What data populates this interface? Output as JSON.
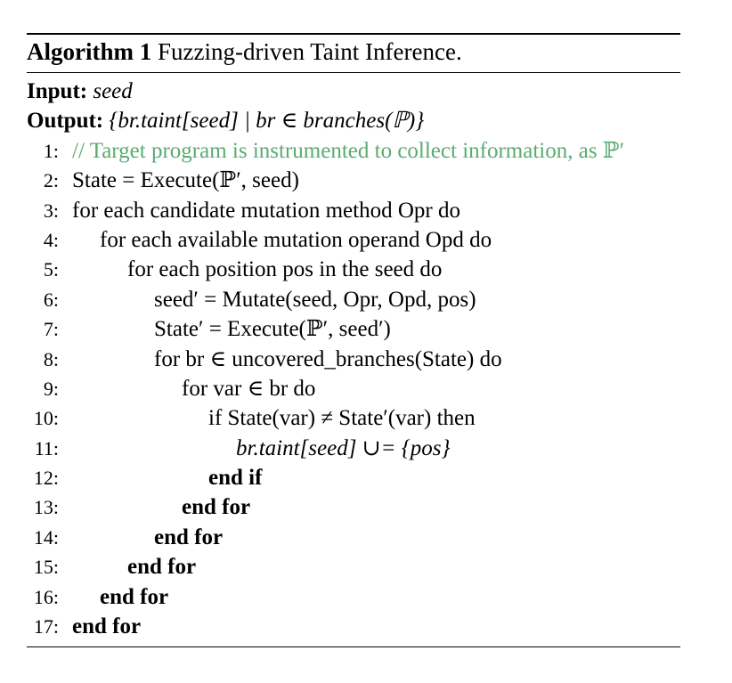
{
  "algorithm": {
    "caption_label": "Algorithm 1",
    "caption_title": "Fuzzing-driven Taint Inference.",
    "input_label": "Input:",
    "input_value": "seed",
    "output_label": "Output:",
    "output_value": "{br.taint[seed] | br ∈ branches(ℙ)}"
  },
  "lines": [
    {
      "num": "1:",
      "text": "// Target program is instrumented to collect information, as ℙ′"
    },
    {
      "num": "2:",
      "text": "State = Execute(ℙ′, seed)"
    },
    {
      "num": "3:",
      "text": "for each candidate mutation method Opr do"
    },
    {
      "num": "4:",
      "text": "for each available mutation operand Opd do"
    },
    {
      "num": "5:",
      "text": "for each position pos in the seed do"
    },
    {
      "num": "6:",
      "text": "seed′ = Mutate(seed, Opr, Opd, pos)"
    },
    {
      "num": "7:",
      "text": "State′ = Execute(ℙ′, seed′)"
    },
    {
      "num": "8:",
      "text": "for br ∈ uncovered_branches(State) do"
    },
    {
      "num": "9:",
      "text": "for var ∈ br do"
    },
    {
      "num": "10:",
      "text": "if State(var) ≠ State′(var) then"
    },
    {
      "num": "11:",
      "text": "br.taint[seed] ∪= {pos}"
    },
    {
      "num": "12:",
      "text": "end if"
    },
    {
      "num": "13:",
      "text": "end for"
    },
    {
      "num": "14:",
      "text": "end for"
    },
    {
      "num": "15:",
      "text": "end for"
    },
    {
      "num": "16:",
      "text": "end for"
    },
    {
      "num": "17:",
      "text": "end for"
    }
  ],
  "colors": {
    "comment": "#5aab6f",
    "text": "#000000"
  }
}
